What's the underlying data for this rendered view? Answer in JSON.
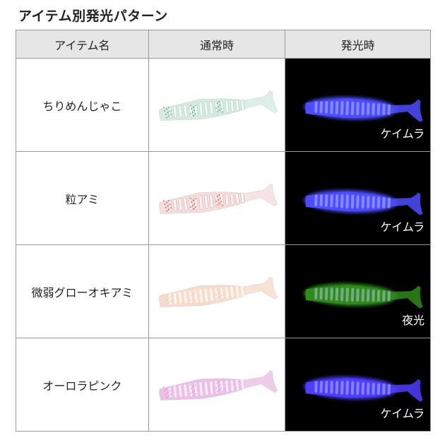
{
  "title": "アイテム別発光パターン",
  "table": {
    "headers": [
      "アイテム名",
      "通常時",
      "発光時"
    ],
    "rows": [
      {
        "name": "ちりめんじゃこ",
        "normal_color": "#d6ece2",
        "fleck_color": "#3a8a62",
        "glow_color": "#4d4dff",
        "glow_label": "ケイムラ"
      },
      {
        "name": "粒アミ",
        "normal_color": "#f4dede",
        "fleck_color": "#c0302a",
        "glow_color": "#4d4dff",
        "glow_label": "ケイムラ"
      },
      {
        "name": "微弱グローオキアミ",
        "normal_color": "#f8dccb",
        "fleck_color": "#f0c2a8",
        "glow_color": "#2f8a1c",
        "glow_label": "夜光"
      },
      {
        "name": "オーロラピンク",
        "normal_color": "#ecc0e6",
        "fleck_color": "#d88ad0",
        "glow_color": "#4d3dff",
        "glow_label": "ケイムラ"
      }
    ]
  }
}
